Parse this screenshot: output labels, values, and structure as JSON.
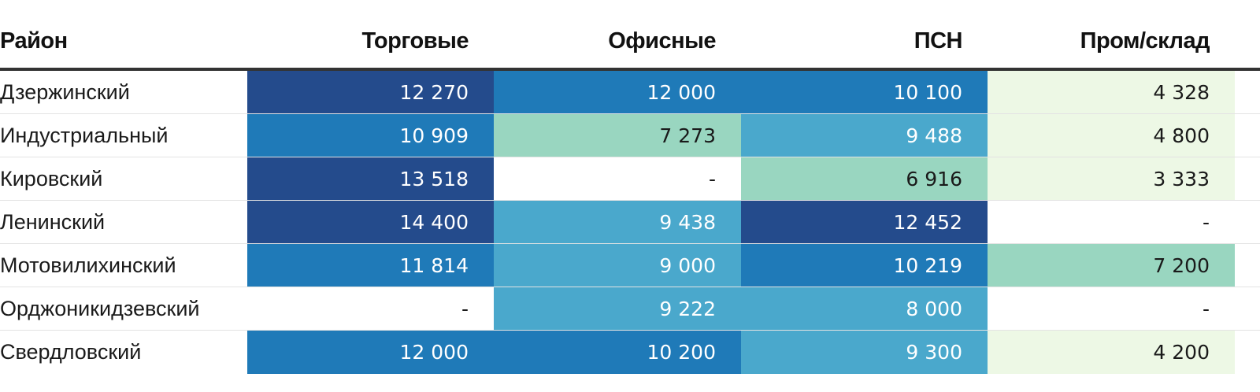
{
  "colors": {
    "very_high": "#244b8c",
    "high": "#1f7ab8",
    "mid": "#4aa8cc",
    "low_mid": "#99d6c0",
    "low": "#edf8e5",
    "empty": "#ffffff",
    "text_dark": "#1a1a1a",
    "text_light": "#ffffff"
  },
  "chart_data": {
    "type": "table",
    "columns": [
      "Район",
      "Торговые",
      "Офисные",
      "ПСН",
      "Пром/склад"
    ],
    "rows": [
      {
        "label": "Дзержинский",
        "values": [
          "12 270",
          "12 000",
          "10 100",
          "4 328"
        ],
        "levels": [
          "very_high",
          "high",
          "high",
          "low"
        ]
      },
      {
        "label": "Индустриальный",
        "values": [
          "10 909",
          "7 273",
          "9 488",
          "4 800"
        ],
        "levels": [
          "high",
          "low_mid",
          "mid",
          "low"
        ]
      },
      {
        "label": "Кировский",
        "values": [
          "13 518",
          "-",
          "6 916",
          "3 333"
        ],
        "levels": [
          "very_high",
          "empty",
          "low_mid",
          "low"
        ]
      },
      {
        "label": "Ленинский",
        "values": [
          "14 400",
          "9 438",
          "12 452",
          "-"
        ],
        "levels": [
          "very_high",
          "mid",
          "very_high",
          "empty"
        ]
      },
      {
        "label": "Мотовилихинский",
        "values": [
          "11 814",
          "9 000",
          "10 219",
          "7 200"
        ],
        "levels": [
          "high",
          "mid",
          "high",
          "low_mid"
        ]
      },
      {
        "label": "Орджоникидзевский",
        "values": [
          "-",
          "9 222",
          "8 000",
          "-"
        ],
        "levels": [
          "empty",
          "mid",
          "mid",
          "empty"
        ]
      },
      {
        "label": "Свердловский",
        "values": [
          "12 000",
          "10 200",
          "9 300",
          "4 200"
        ],
        "levels": [
          "high",
          "high",
          "mid",
          "low"
        ]
      }
    ]
  }
}
